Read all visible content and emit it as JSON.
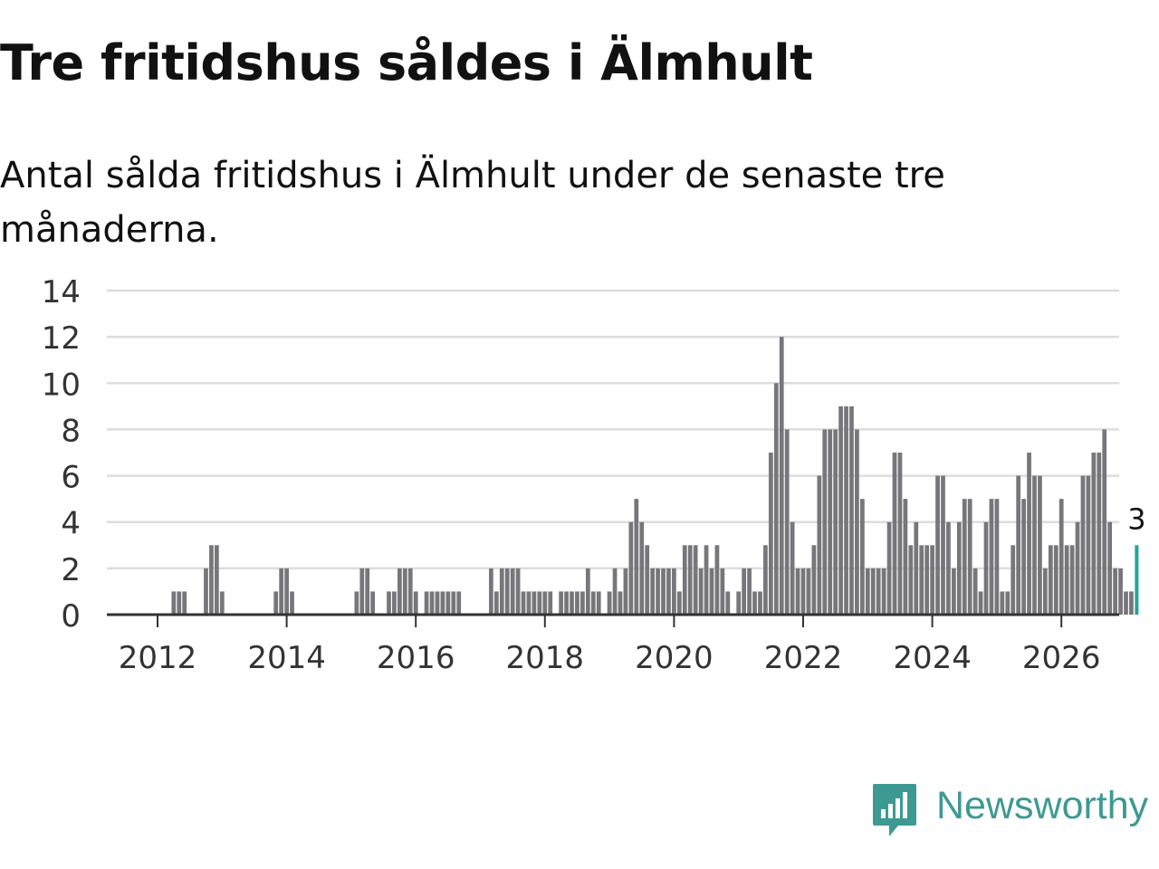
{
  "title": "Tre fritidshus såldes i Älmhult",
  "subtitle": "Antal sålda fritidshus i Älmhult under de senaste tre månaderna.",
  "brand": {
    "name": "Newsworthy",
    "icon": "newsworthy-logo-icon",
    "color": "#3d9a93"
  },
  "colors": {
    "bar": "#76767b",
    "highlight": "#23a597",
    "grid": "#dddddd",
    "axis": "#333333",
    "text": "#333333"
  },
  "chart_data": {
    "type": "bar",
    "x_unit": "month",
    "start_month": "2011-05",
    "values": [
      0,
      0,
      0,
      0,
      0,
      0,
      0,
      0,
      0,
      0,
      0,
      1,
      1,
      1,
      0,
      0,
      0,
      2,
      3,
      3,
      1,
      0,
      0,
      0,
      0,
      0,
      0,
      0,
      0,
      0,
      1,
      2,
      2,
      1,
      0,
      0,
      0,
      0,
      0,
      0,
      0,
      0,
      0,
      0,
      0,
      1,
      2,
      2,
      1,
      0,
      0,
      1,
      1,
      2,
      2,
      2,
      1,
      0,
      1,
      1,
      1,
      1,
      1,
      1,
      1,
      0,
      0,
      0,
      0,
      0,
      2,
      1,
      2,
      2,
      2,
      2,
      1,
      1,
      1,
      1,
      1,
      1,
      0,
      1,
      1,
      1,
      1,
      1,
      2,
      1,
      1,
      0,
      1,
      2,
      1,
      2,
      4,
      5,
      4,
      3,
      2,
      2,
      2,
      2,
      2,
      1,
      3,
      3,
      3,
      2,
      3,
      2,
      3,
      2,
      1,
      0,
      1,
      2,
      2,
      1,
      1,
      3,
      7,
      10,
      12,
      8,
      4,
      2,
      2,
      2,
      3,
      6,
      8,
      8,
      8,
      9,
      9,
      9,
      8,
      5,
      2,
      2,
      2,
      2,
      4,
      7,
      7,
      5,
      3,
      4,
      3,
      3,
      3,
      6,
      6,
      4,
      2,
      4,
      5,
      5,
      2,
      1,
      4,
      5,
      5,
      1,
      1,
      3,
      6,
      5,
      7,
      6,
      6,
      2,
      3,
      3,
      5,
      3,
      3,
      4,
      6,
      6,
      7,
      7,
      8,
      4,
      2,
      2,
      1,
      1,
      3
    ],
    "highlight_label": "3",
    "x_ticks": [
      "2012",
      "2014",
      "2016",
      "2018",
      "2020",
      "2022",
      "2024",
      "2026"
    ],
    "y_ticks": [
      "0",
      "2",
      "4",
      "6",
      "8",
      "10",
      "12",
      "14"
    ],
    "ylim": [
      0,
      14
    ],
    "grid": true,
    "xlabel": "",
    "ylabel": ""
  }
}
